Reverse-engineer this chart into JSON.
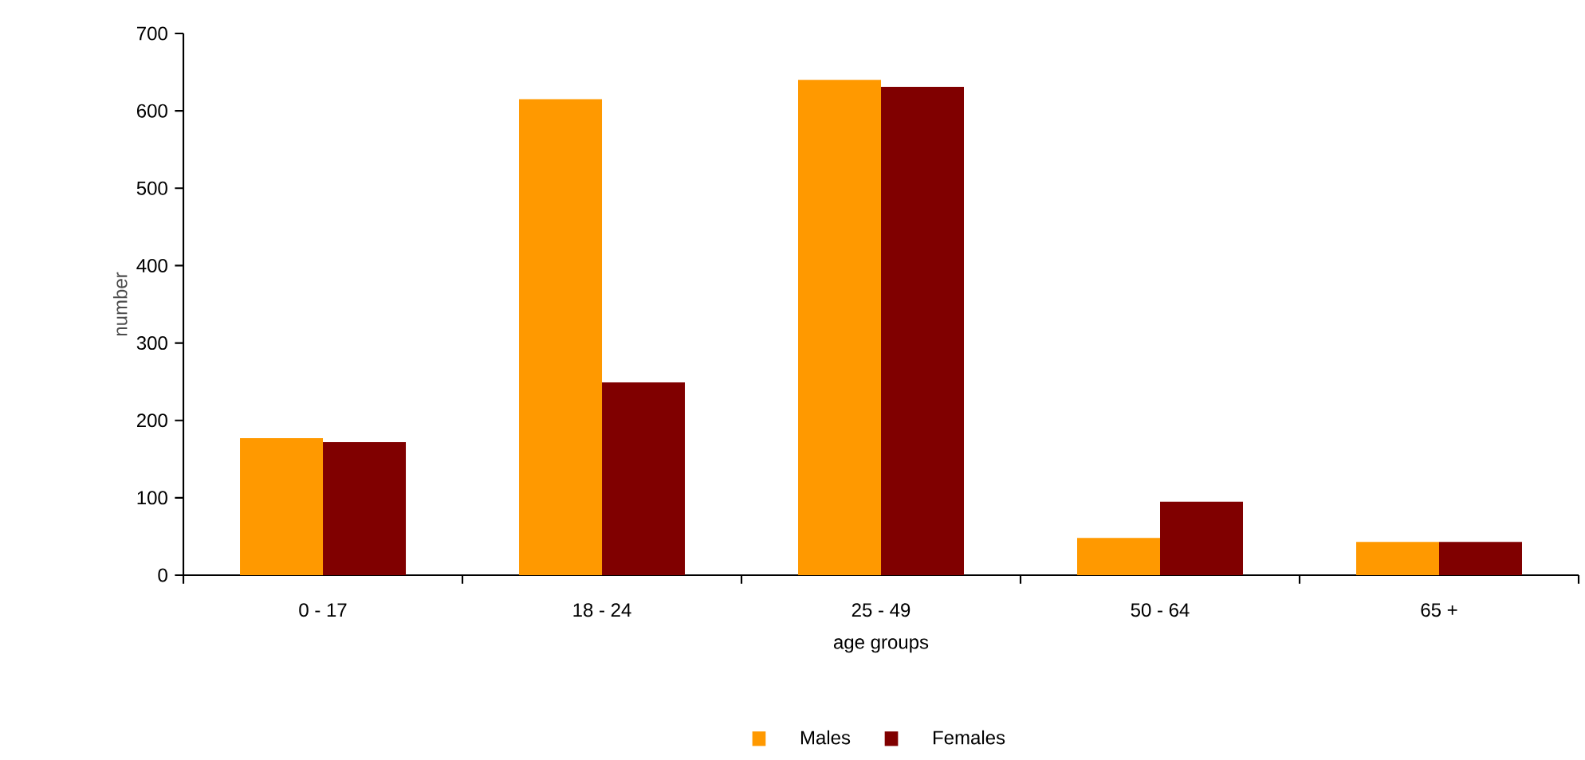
{
  "chart_data": {
    "type": "bar",
    "xlabel": "age groups",
    "ylabel": "number",
    "categories": [
      "0 - 17",
      "18 - 24",
      "25 - 49",
      "50 - 64",
      "65 +"
    ],
    "series": [
      {
        "name": "Males",
        "color": "#ff9900",
        "values": [
          177,
          615,
          640,
          48,
          43
        ]
      },
      {
        "name": "Females",
        "color": "#800000",
        "values": [
          172,
          249,
          631,
          95,
          43
        ]
      }
    ],
    "ylim": [
      0,
      700
    ],
    "yticks": [
      0,
      100,
      200,
      300,
      400,
      500,
      600,
      700
    ],
    "grid": false,
    "legend": "bottom"
  }
}
